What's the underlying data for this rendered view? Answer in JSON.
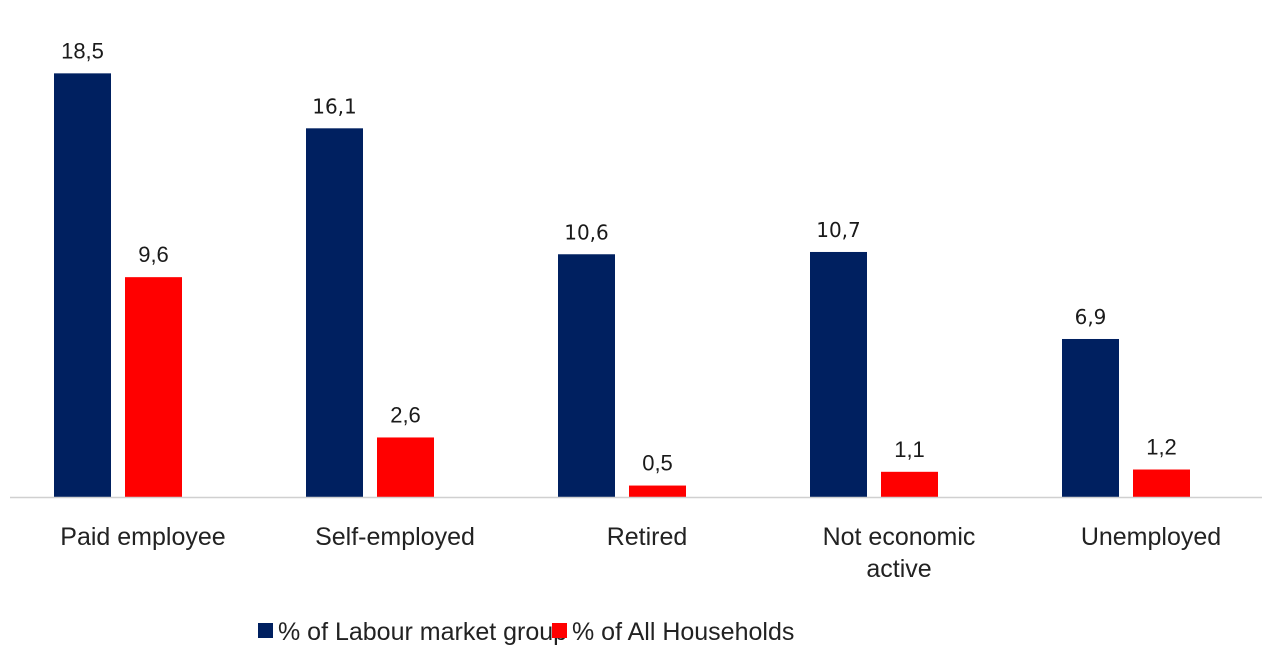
{
  "chart_data": {
    "type": "bar",
    "title": "",
    "xlabel": "",
    "ylabel": "",
    "categories": [
      [
        "Paid employee"
      ],
      [
        "Self-employed"
      ],
      [
        "Retired"
      ],
      [
        "Not economic",
        "active"
      ],
      [
        "Unemployed"
      ]
    ],
    "series": [
      {
        "name": "% of Labour market group",
        "color": "#002060",
        "values": [
          18.5,
          16.1,
          10.6,
          10.7,
          6.9
        ],
        "labels": [
          "18,5",
          "16,1",
          "10,6",
          "10,7",
          "6,9"
        ]
      },
      {
        "name": "% of All Households",
        "color": "#ff0000",
        "values": [
          9.6,
          2.6,
          0.5,
          1.1,
          1.2
        ],
        "labels": [
          "9,6",
          "2,6",
          "0,5",
          "1,1",
          "1,2"
        ]
      }
    ],
    "ylim": [
      0,
      20
    ],
    "grid": false,
    "legend": "bottom-center",
    "axis_color": "#d0d0d0"
  }
}
